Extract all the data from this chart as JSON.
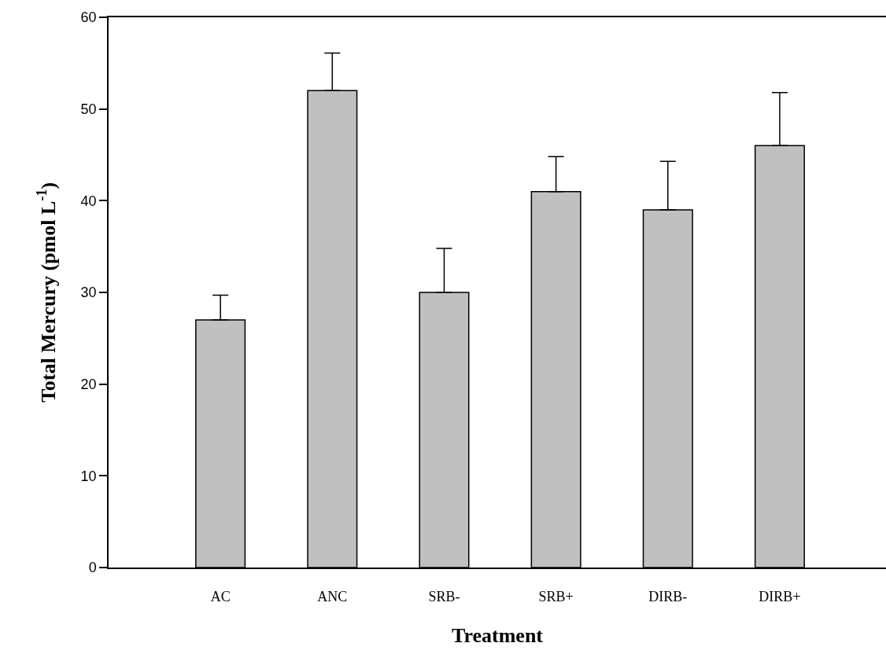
{
  "chart_data": {
    "type": "bar",
    "xlabel": "Treatment",
    "ylabel": "Total Mercury (pmol L$^{-1}$)",
    "categories": [
      "AC",
      "ANC",
      "SRB-",
      "SRB+",
      "DIRB-",
      "DIRB+"
    ],
    "values": [
      27,
      52,
      30,
      41,
      39,
      46
    ],
    "errors": [
      [
        27,
        29.7
      ],
      [
        52,
        56.1
      ],
      [
        30,
        34.8
      ],
      [
        41,
        44.8
      ],
      [
        39,
        44.3
      ],
      [
        46,
        51.8
      ]
    ],
    "color": "#c0c0c0",
    "ylim": [
      0,
      60
    ],
    "yticks": [
      0,
      10,
      20,
      30,
      40,
      50,
      60
    ],
    "grid": false
  }
}
